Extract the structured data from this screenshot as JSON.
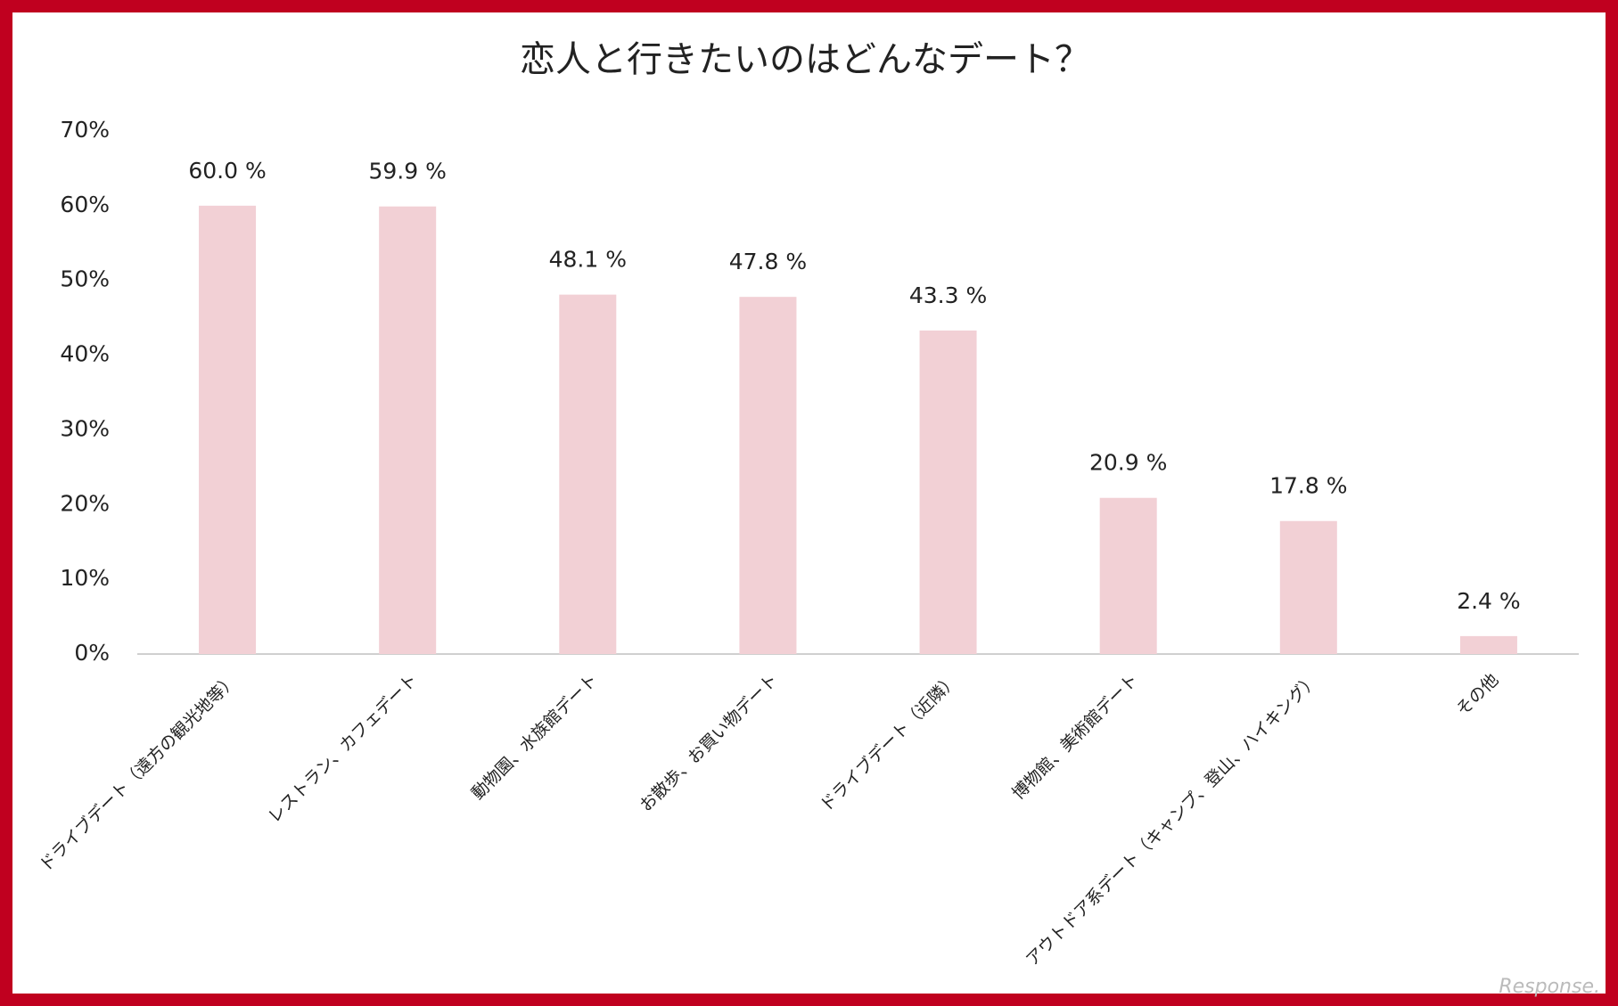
{
  "chart_data": {
    "type": "bar",
    "title": "恋人と行きたいのはどんなデート？",
    "categories": [
      "ドライブデート（遠方の観光地等）",
      "レストラン、カフェデート",
      "動物園、水族館デート",
      "お散歩、お買い物デート",
      "ドライブデート（近隣）",
      "博物館、美術館デート",
      "アウトドア系デート（キャンプ、登山、ハイキング）",
      "その他"
    ],
    "values": [
      60.0,
      59.9,
      48.1,
      47.8,
      43.3,
      20.9,
      17.8,
      2.4
    ],
    "value_labels": [
      "60.0 %",
      "59.9 %",
      "48.1 %",
      "47.8 %",
      "43.3 %",
      "20.9 %",
      "17.8 %",
      "2.4 %"
    ],
    "color": "#f2d0d5",
    "ylim": [
      0,
      70
    ],
    "yticks": [
      {
        "value": 0,
        "label": "0%"
      },
      {
        "value": 10,
        "label": "10%"
      },
      {
        "value": 20,
        "label": "20%"
      },
      {
        "value": 30,
        "label": "30%"
      },
      {
        "value": 40,
        "label": "40%"
      },
      {
        "value": 50,
        "label": "50%"
      },
      {
        "value": 60,
        "label": "60%"
      },
      {
        "value": 70,
        "label": "70%"
      }
    ],
    "grid": false,
    "watermark": "Response."
  }
}
